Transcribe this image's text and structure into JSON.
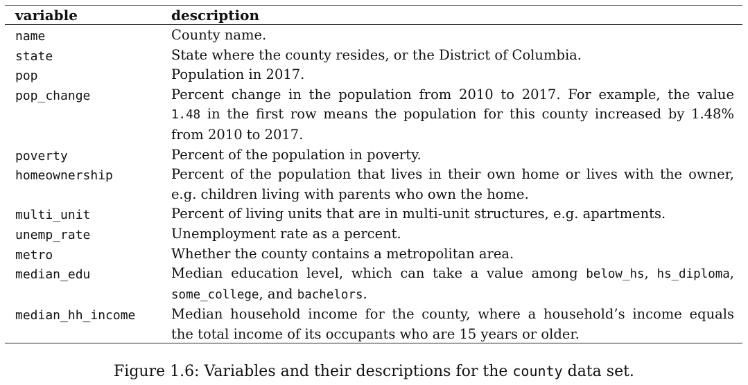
{
  "table": {
    "headers": {
      "variable": "variable",
      "description": "description"
    },
    "rows": [
      {
        "variable": "name",
        "lines": [
          [
            {
              "t": "County name."
            }
          ]
        ]
      },
      {
        "variable": "state",
        "lines": [
          [
            {
              "t": "State where the county resides, or the District of Columbia."
            }
          ]
        ]
      },
      {
        "variable": "pop",
        "lines": [
          [
            {
              "t": "Population in 2017."
            }
          ]
        ]
      },
      {
        "variable": "pop_change",
        "lines": [
          [
            {
              "t": "Percent change in the population from 2010 to 2017.  For example, the value"
            }
          ],
          [
            {
              "t": "1.48",
              "code": true
            },
            {
              "t": " in the first row means the population for this county increased by 1.48%"
            }
          ],
          [
            {
              "t": "from 2010 to 2017."
            }
          ]
        ]
      },
      {
        "variable": "poverty",
        "lines": [
          [
            {
              "t": "Percent of the population in poverty."
            }
          ]
        ]
      },
      {
        "variable": "homeownership",
        "lines": [
          [
            {
              "t": "Percent of the population that lives in their own home or lives with the owner,"
            }
          ],
          [
            {
              "t": "e.g. children living with parents who own the home."
            }
          ]
        ]
      },
      {
        "variable": "multi_unit",
        "lines": [
          [
            {
              "t": "Percent of living units that are in multi-unit structures, e.g. apartments."
            }
          ]
        ]
      },
      {
        "variable": "unemp_rate",
        "lines": [
          [
            {
              "t": "Unemployment rate as a percent."
            }
          ]
        ]
      },
      {
        "variable": "metro",
        "lines": [
          [
            {
              "t": "Whether the county contains a metropolitan area."
            }
          ]
        ]
      },
      {
        "variable": "median_edu",
        "lines": [
          [
            {
              "t": "Median education level, which can take a value among "
            },
            {
              "t": "below_hs",
              "code": true
            },
            {
              "t": ", "
            },
            {
              "t": "hs_diploma",
              "code": true
            },
            {
              "t": ","
            }
          ],
          [
            {
              "t": "some_college",
              "code": true
            },
            {
              "t": ", and "
            },
            {
              "t": "bachelors",
              "code": true
            },
            {
              "t": "."
            }
          ]
        ]
      },
      {
        "variable": "median_hh_income",
        "lines": [
          [
            {
              "t": "Median household income for the county, where a household’s income equals"
            }
          ],
          [
            {
              "t": "the total income of its occupants who are 15 years or older."
            }
          ]
        ]
      }
    ]
  },
  "caption": {
    "prefix": "Figure 1.6: Variables and their descriptions for the ",
    "code": "county",
    "suffix": " data set."
  }
}
